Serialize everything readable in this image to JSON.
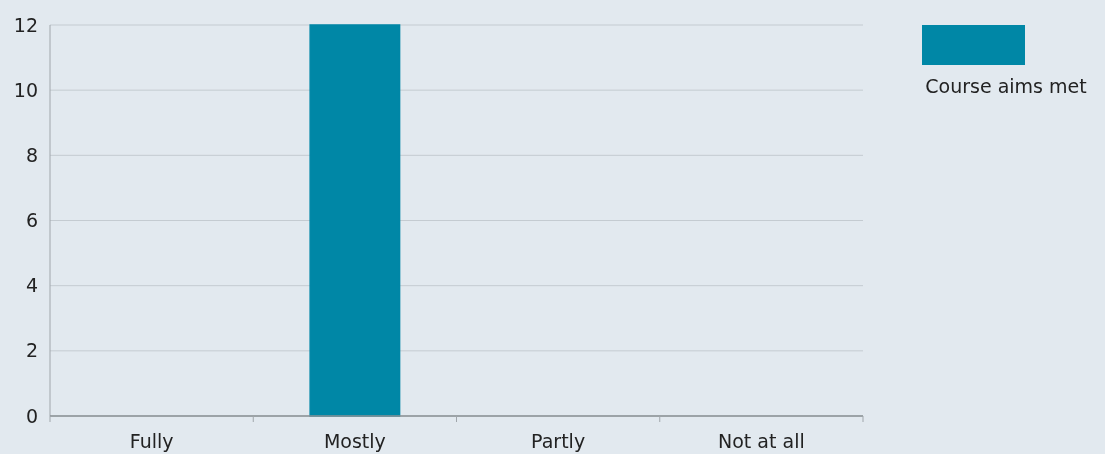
{
  "chart_data": {
    "type": "bar",
    "categories": [
      "Fully",
      "Mostly",
      "Partly",
      "Not at all"
    ],
    "series": [
      {
        "name": "Course aims met",
        "color": "#0087a6",
        "values": [
          0,
          12,
          0,
          0
        ]
      }
    ],
    "ylim": [
      0,
      12
    ],
    "yticks": [
      0,
      2,
      4,
      6,
      8,
      10,
      12
    ],
    "grid": "y",
    "legend": "top right"
  }
}
